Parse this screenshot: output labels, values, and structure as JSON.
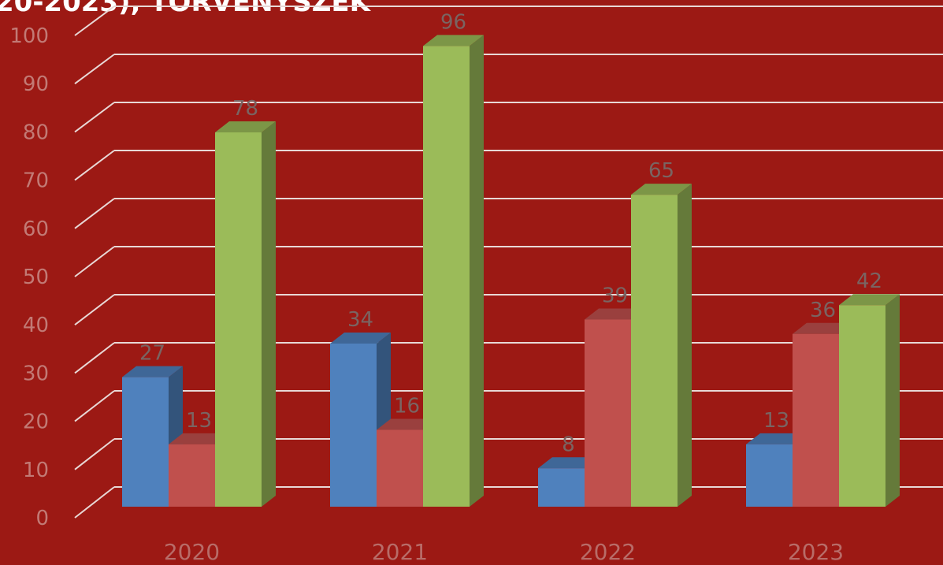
{
  "chart_data": {
    "type": "bar3d",
    "title": "20-2023), TÖRVÉNYSZÉK",
    "categories": [
      "2020",
      "2021",
      "2022",
      "2023"
    ],
    "series": [
      {
        "color": "#4f81bd",
        "values": [
          27,
          34,
          8,
          13
        ]
      },
      {
        "color": "#c0504d",
        "values": [
          13,
          16,
          39,
          36
        ]
      },
      {
        "color": "#9bbb59",
        "values": [
          78,
          96,
          65,
          42
        ]
      }
    ],
    "ylim": [
      0,
      100
    ],
    "yticks": [
      0,
      10,
      20,
      30,
      40,
      50,
      60,
      70,
      80,
      90,
      100
    ],
    "grid": true
  }
}
